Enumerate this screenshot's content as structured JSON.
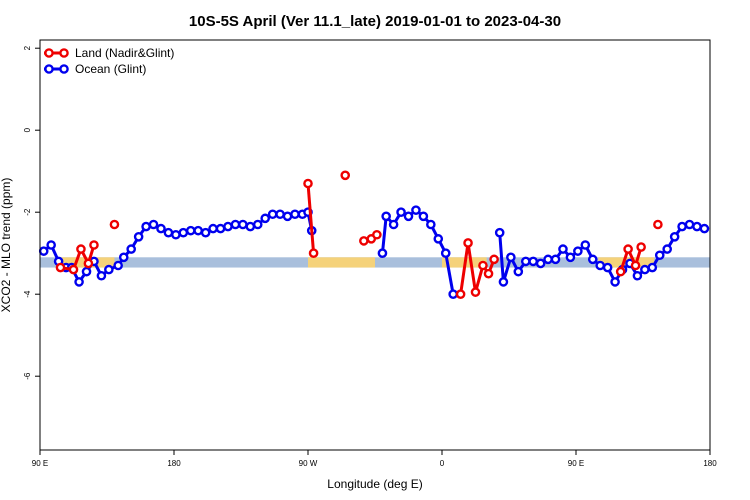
{
  "chart_data": {
    "type": "line",
    "title": "10S-5S April (Ver 11.1_late)   2019-01-01 to 2023-04-30",
    "xlabel": "Longitude (deg E)",
    "ylabel": "XCO2 - MLO trend (ppm)",
    "xlim": [
      90,
      450
    ],
    "ylim": [
      -7.8,
      2.2
    ],
    "x_ticks": [
      {
        "value": 90,
        "label": "90 E"
      },
      {
        "value": 162,
        "label": "180"
      },
      {
        "value": 234,
        "label": "90 W"
      },
      {
        "value": 306,
        "label": "0"
      },
      {
        "value": 378,
        "label": "90 E"
      },
      {
        "value": 450,
        "label": "180"
      }
    ],
    "y_ticks": [
      {
        "value": 2,
        "label": "2"
      },
      {
        "value": 0,
        "label": "0"
      },
      {
        "value": -2,
        "label": "-2"
      },
      {
        "value": -4,
        "label": "-4"
      },
      {
        "value": -6,
        "label": "-6"
      }
    ],
    "legend_position": "top-left",
    "band": {
      "ymin": -3.35,
      "ymax": -3.1,
      "color": "#a9bfdc",
      "land_color": "#f5d27a"
    },
    "land_band_segments": [
      [
        100,
        130
      ],
      [
        234,
        270
      ],
      [
        306,
        330
      ],
      [
        390,
        420
      ]
    ],
    "series": [
      {
        "name": "Land (Nadir&Glint)",
        "color": "#ee0000",
        "segments": [
          [
            [
              101,
              -3.35
            ],
            [
              108,
              -3.4
            ],
            [
              112,
              -2.9
            ],
            [
              116,
              -3.25
            ],
            [
              119,
              -2.8
            ]
          ],
          [
            [
              130,
              -2.3
            ]
          ],
          [
            [
              234,
              -1.3
            ],
            [
              237,
              -3.0
            ]
          ],
          [
            [
              254,
              -1.1
            ]
          ],
          [
            [
              264,
              -2.7
            ],
            [
              268,
              -2.65
            ],
            [
              271,
              -2.55
            ]
          ],
          [
            [
              316,
              -4.0
            ],
            [
              320,
              -2.75
            ],
            [
              324,
              -3.95
            ],
            [
              328,
              -3.3
            ],
            [
              331,
              -3.5
            ],
            [
              334,
              -3.15
            ]
          ],
          [
            [
              402,
              -3.45
            ],
            [
              406,
              -2.9
            ],
            [
              410,
              -3.3
            ],
            [
              413,
              -2.85
            ]
          ],
          [
            [
              422,
              -2.3
            ]
          ]
        ]
      },
      {
        "name": "Ocean (Glint)",
        "color": "#0000ee",
        "segments": [
          [
            [
              92,
              -2.95
            ],
            [
              96,
              -2.8
            ],
            [
              100,
              -3.2
            ],
            [
              104,
              -3.35
            ],
            [
              107,
              -3.35
            ],
            [
              111,
              -3.7
            ],
            [
              115,
              -3.45
            ],
            [
              119,
              -3.2
            ],
            [
              123,
              -3.55
            ],
            [
              127,
              -3.4
            ],
            [
              132,
              -3.3
            ],
            [
              135,
              -3.1
            ],
            [
              139,
              -2.9
            ],
            [
              143,
              -2.6
            ],
            [
              147,
              -2.35
            ],
            [
              151,
              -2.3
            ],
            [
              155,
              -2.4
            ],
            [
              159,
              -2.5
            ],
            [
              163,
              -2.55
            ],
            [
              167,
              -2.5
            ],
            [
              171,
              -2.45
            ],
            [
              175,
              -2.45
            ],
            [
              179,
              -2.5
            ],
            [
              183,
              -2.4
            ],
            [
              187,
              -2.4
            ],
            [
              191,
              -2.35
            ],
            [
              195,
              -2.3
            ],
            [
              199,
              -2.3
            ],
            [
              203,
              -2.35
            ],
            [
              207,
              -2.3
            ],
            [
              211,
              -2.15
            ],
            [
              215,
              -2.05
            ],
            [
              219,
              -2.05
            ],
            [
              223,
              -2.1
            ],
            [
              227,
              -2.05
            ],
            [
              231,
              -2.05
            ],
            [
              234,
              -2.0
            ],
            [
              236,
              -2.45
            ]
          ],
          [
            [
              274,
              -3.0
            ],
            [
              276,
              -2.1
            ],
            [
              280,
              -2.3
            ],
            [
              284,
              -2.0
            ],
            [
              288,
              -2.1
            ],
            [
              292,
              -1.95
            ],
            [
              296,
              -2.1
            ],
            [
              300,
              -2.3
            ],
            [
              304,
              -2.65
            ],
            [
              308,
              -3.0
            ],
            [
              312,
              -4.0
            ]
          ],
          [
            [
              337,
              -2.5
            ],
            [
              339,
              -3.7
            ],
            [
              343,
              -3.1
            ],
            [
              347,
              -3.45
            ],
            [
              351,
              -3.2
            ],
            [
              355,
              -3.2
            ],
            [
              359,
              -3.25
            ],
            [
              363,
              -3.15
            ],
            [
              367,
              -3.15
            ],
            [
              371,
              -2.9
            ],
            [
              375,
              -3.1
            ],
            [
              379,
              -2.95
            ],
            [
              383,
              -2.8
            ],
            [
              387,
              -3.15
            ],
            [
              391,
              -3.3
            ],
            [
              395,
              -3.35
            ],
            [
              399,
              -3.7
            ],
            [
              403,
              -3.4
            ],
            [
              407,
              -3.25
            ],
            [
              411,
              -3.55
            ],
            [
              415,
              -3.4
            ],
            [
              419,
              -3.35
            ],
            [
              423,
              -3.05
            ],
            [
              427,
              -2.9
            ],
            [
              431,
              -2.6
            ],
            [
              435,
              -2.35
            ],
            [
              439,
              -2.3
            ],
            [
              443,
              -2.35
            ],
            [
              447,
              -2.4
            ]
          ]
        ]
      }
    ]
  }
}
